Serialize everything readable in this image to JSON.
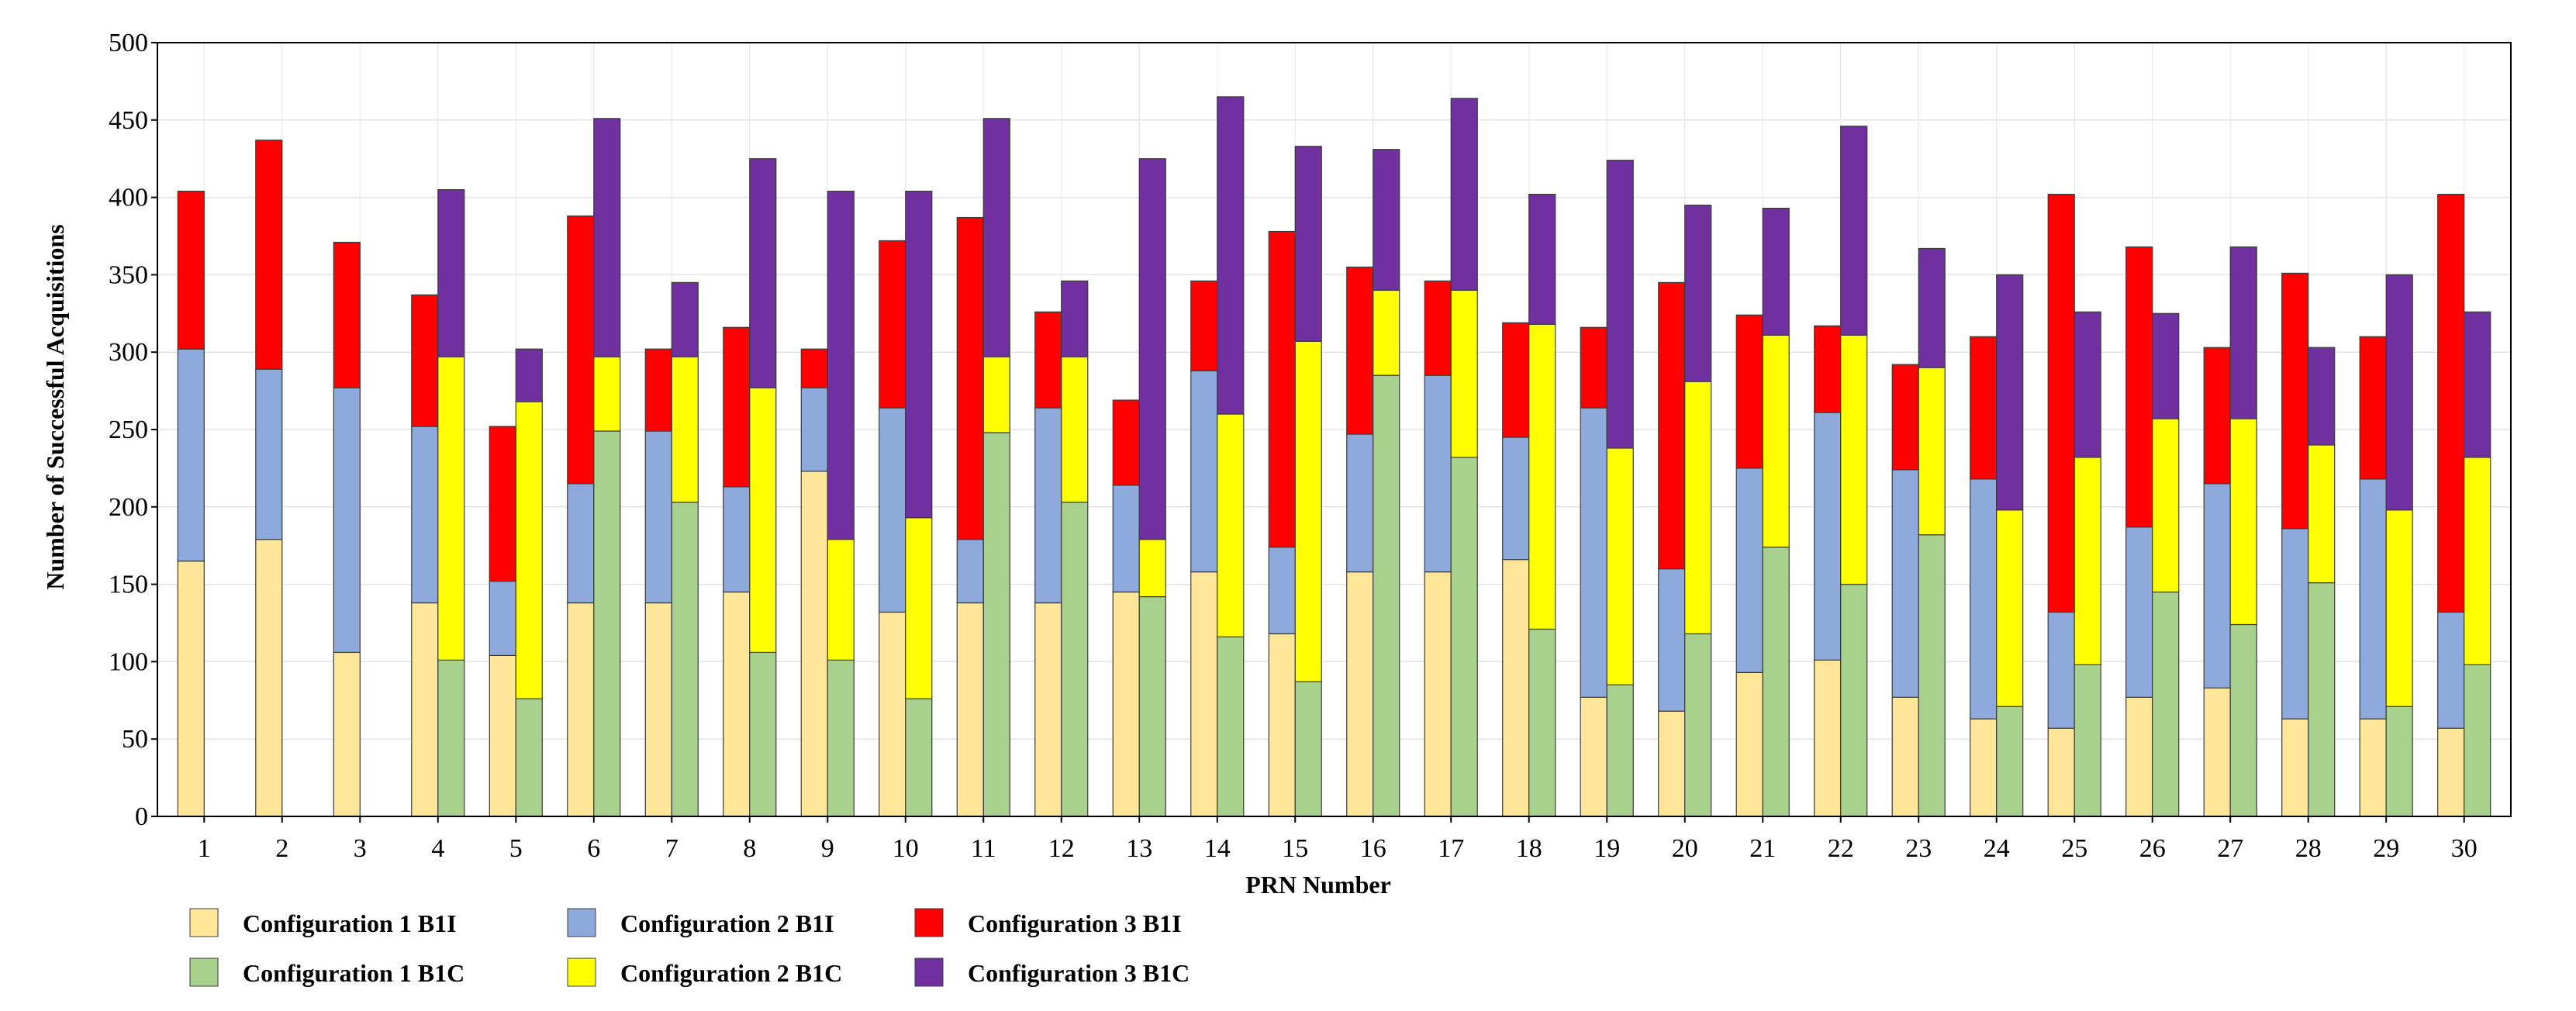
{
  "chart_data": {
    "type": "bar",
    "subtype": "stacked-grouped",
    "title": "",
    "xlabel": "PRN Number",
    "ylabel": "Number of Successful Acquisitions",
    "ylim": [
      0,
      500
    ],
    "yticks": [
      0,
      50,
      100,
      150,
      200,
      250,
      300,
      350,
      400,
      450,
      500
    ],
    "grid": true,
    "legend_position": "bottom-left",
    "categories": [
      "1",
      "2",
      "3",
      "4",
      "5",
      "6",
      "7",
      "8",
      "9",
      "10",
      "11",
      "12",
      "13",
      "14",
      "15",
      "16",
      "17",
      "18",
      "19",
      "20",
      "21",
      "22",
      "23",
      "24",
      "25",
      "26",
      "27",
      "28",
      "29",
      "30"
    ],
    "groups": [
      {
        "name": "B1I",
        "series": [
          {
            "name": "Configuration 1 B1I",
            "color": "#FFE699",
            "values": [
              165,
              179,
              106,
              138,
              104,
              138,
              138,
              145,
              223,
              132,
              138,
              138,
              145,
              158,
              118,
              158,
              158,
              166,
              77,
              68,
              93,
              101,
              77,
              63,
              57,
              77,
              83,
              63,
              63,
              57
            ]
          },
          {
            "name": "Configuration 2 B1I",
            "color": "#8EA9DB",
            "values": [
              137,
              110,
              171,
              114,
              48,
              77,
              111,
              68,
              54,
              132,
              41,
              126,
              69,
              130,
              56,
              89,
              127,
              79,
              187,
              92,
              132,
              160,
              147,
              155,
              75,
              110,
              132,
              123,
              155,
              75
            ]
          },
          {
            "name": "Configuration 3 B1I",
            "color": "#FF0000",
            "values": [
              102,
              148,
              94,
              85,
              100,
              173,
              53,
              103,
              25,
              108,
              208,
              62,
              55,
              58,
              204,
              108,
              61,
              74,
              52,
              185,
              99,
              56,
              68,
              92,
              270,
              181,
              88,
              165,
              92,
              270
            ]
          }
        ]
      },
      {
        "name": "B1C",
        "series": [
          {
            "name": "Configuration 1 B1C",
            "color": "#A9D18E",
            "values": [
              0,
              0,
              0,
              101,
              76,
              249,
              203,
              106,
              101,
              76,
              248,
              203,
              142,
              116,
              87,
              285,
              232,
              121,
              85,
              118,
              174,
              150,
              182,
              71,
              98,
              145,
              124,
              151,
              71,
              98
            ]
          },
          {
            "name": "Configuration 2 B1C",
            "color": "#FFFF00",
            "values": [
              0,
              0,
              0,
              196,
              192,
              48,
              94,
              171,
              78,
              117,
              49,
              94,
              37,
              144,
              220,
              55,
              108,
              197,
              153,
              163,
              137,
              161,
              108,
              127,
              134,
              112,
              133,
              89,
              127,
              134
            ]
          },
          {
            "name": "Configuration 3 B1C",
            "color": "#7030A0",
            "values": [
              0,
              0,
              0,
              108,
              34,
              154,
              48,
              148,
              225,
              211,
              154,
              49,
              246,
              205,
              126,
              91,
              124,
              84,
              186,
              114,
              82,
              135,
              77,
              152,
              94,
              68,
              111,
              63,
              152,
              94
            ]
          }
        ]
      }
    ]
  }
}
